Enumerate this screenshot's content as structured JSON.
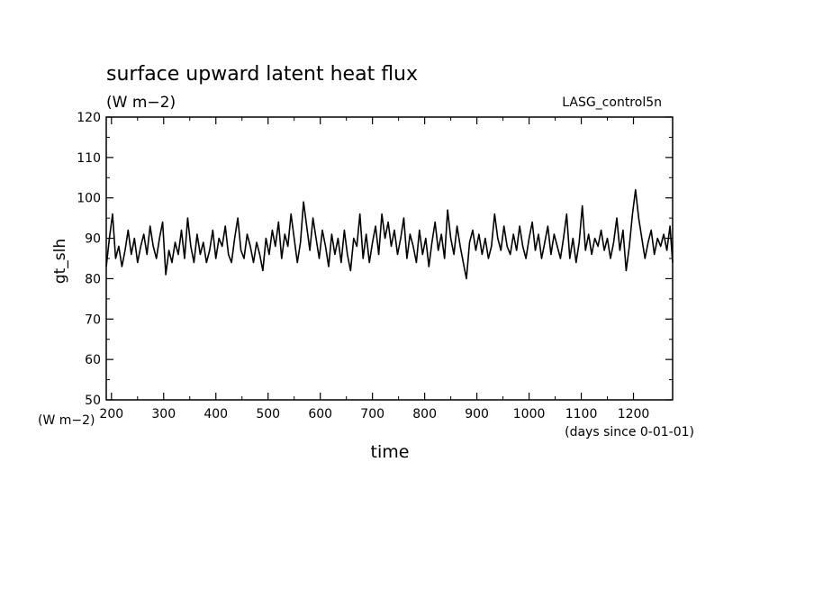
{
  "chart_data": {
    "type": "line",
    "title": "surface upward latent heat flux",
    "subtitle": "(W m−2)",
    "source_label": "LASG_control5n",
    "xlabel": "time",
    "x_unit_label": "(days since 0-01-01)",
    "ylabel": "gt_slh",
    "y_unit_label": "(W m−2)",
    "xlim": [
      190,
      1275
    ],
    "ylim": [
      50,
      120
    ],
    "x_ticks": [
      200,
      300,
      400,
      500,
      600,
      700,
      800,
      900,
      1000,
      1100,
      1200
    ],
    "y_ticks": [
      50,
      60,
      70,
      80,
      90,
      100,
      110,
      120
    ],
    "grid": false,
    "series": [
      {
        "color": "#000000",
        "x": [
          190,
          196,
          202,
          208,
          214,
          220,
          226,
          232,
          238,
          244,
          250,
          256,
          262,
          268,
          274,
          280,
          286,
          292,
          298,
          304,
          310,
          316,
          322,
          328,
          334,
          340,
          346,
          352,
          358,
          364,
          370,
          376,
          382,
          388,
          394,
          400,
          406,
          412,
          418,
          424,
          430,
          436,
          442,
          448,
          454,
          460,
          466,
          472,
          478,
          484,
          490,
          496,
          502,
          508,
          514,
          520,
          526,
          532,
          538,
          544,
          550,
          556,
          562,
          568,
          574,
          580,
          586,
          592,
          598,
          604,
          610,
          616,
          622,
          628,
          634,
          640,
          646,
          652,
          658,
          664,
          670,
          676,
          682,
          688,
          694,
          700,
          706,
          712,
          718,
          724,
          730,
          736,
          742,
          748,
          754,
          760,
          766,
          772,
          778,
          784,
          790,
          796,
          802,
          808,
          814,
          820,
          826,
          832,
          838,
          844,
          850,
          856,
          862,
          868,
          874,
          880,
          886,
          892,
          898,
          904,
          910,
          916,
          922,
          928,
          934,
          940,
          946,
          952,
          958,
          964,
          970,
          976,
          982,
          988,
          994,
          1000,
          1006,
          1012,
          1018,
          1024,
          1030,
          1036,
          1042,
          1048,
          1054,
          1060,
          1066,
          1072,
          1078,
          1084,
          1090,
          1096,
          1102,
          1108,
          1114,
          1120,
          1126,
          1132,
          1138,
          1144,
          1150,
          1156,
          1162,
          1168,
          1174,
          1180,
          1186,
          1192,
          1198,
          1204,
          1210,
          1216,
          1222,
          1228,
          1234,
          1240,
          1246,
          1252,
          1258,
          1264,
          1270,
          1275
        ],
        "y": [
          83,
          90,
          96,
          85,
          88,
          83,
          87,
          92,
          86,
          90,
          84,
          88,
          91,
          86,
          93,
          88,
          85,
          90,
          94,
          81,
          87,
          84,
          89,
          86,
          92,
          85,
          95,
          88,
          84,
          91,
          86,
          89,
          84,
          87,
          92,
          85,
          90,
          88,
          93,
          86,
          84,
          90,
          95,
          87,
          85,
          91,
          88,
          84,
          89,
          86,
          82,
          90,
          86,
          92,
          88,
          94,
          85,
          91,
          88,
          96,
          90,
          84,
          89,
          99,
          93,
          87,
          95,
          90,
          85,
          92,
          88,
          83,
          91,
          86,
          90,
          84,
          92,
          86,
          82,
          90,
          88,
          96,
          85,
          91,
          84,
          89,
          93,
          86,
          96,
          90,
          94,
          88,
          92,
          86,
          90,
          95,
          85,
          91,
          88,
          84,
          92,
          86,
          90,
          83,
          89,
          94,
          87,
          91,
          85,
          97,
          90,
          86,
          93,
          88,
          84,
          80,
          89,
          92,
          87,
          91,
          86,
          90,
          85,
          88,
          96,
          90,
          87,
          93,
          88,
          86,
          91,
          87,
          93,
          88,
          85,
          90,
          94,
          87,
          91,
          85,
          89,
          93,
          86,
          91,
          88,
          85,
          90,
          96,
          85,
          90,
          84,
          89,
          98,
          87,
          91,
          86,
          90,
          88,
          92,
          87,
          90,
          85,
          89,
          95,
          87,
          92,
          82,
          88,
          96,
          102,
          95,
          90,
          85,
          89,
          92,
          86,
          90,
          88,
          91,
          87,
          93,
          84
        ]
      }
    ]
  }
}
